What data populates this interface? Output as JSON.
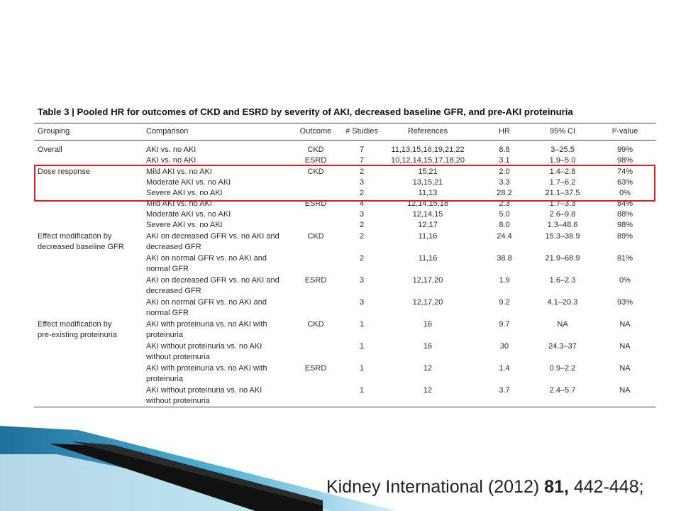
{
  "caption": "Table 3 | Pooled HR for outcomes of CKD and ESRD by severity of AKI, decreased baseline GFR, and pre-AKI proteinuria",
  "headers": [
    "Grouping",
    "Comparison",
    "Outcome",
    "# Studies",
    "References",
    "HR",
    "95% CI",
    "I²-value"
  ],
  "rows": [
    {
      "group": "Overall",
      "comp": "AKI vs. no AKI",
      "out": "CKD",
      "n": "7",
      "ref": "11,13,15,16,19,21,22",
      "hr": "8.8",
      "ci": "3–25.5",
      "i2": "99%"
    },
    {
      "group": "",
      "comp": "AKI vs. no AKI",
      "out": "ESRD",
      "n": "7",
      "ref": "10,12,14,15,17,18,20",
      "hr": "3.1",
      "ci": "1.9–5.0",
      "i2": "98%"
    },
    {
      "group": "Dose response",
      "comp": "Mild AKI vs. no AKI",
      "out": "CKD",
      "n": "2",
      "ref": "15,21",
      "hr": "2.0",
      "ci": "1.4–2.8",
      "i2": "74%"
    },
    {
      "group": "",
      "comp": "Moderate AKI vs. no AKI",
      "out": "",
      "n": "3",
      "ref": "13,15,21",
      "hr": "3.3",
      "ci": "1.7–6.2",
      "i2": "63%"
    },
    {
      "group": "",
      "comp": "Severe AKI vs. no AKI",
      "out": "",
      "n": "2",
      "ref": "11,13",
      "hr": "28.2",
      "ci": "21.1–37.5",
      "i2": "0%"
    },
    {
      "group": "",
      "comp": "Mild AKI vs. no AKI",
      "out": "ESRD",
      "n": "4",
      "ref": "12,14,15,18",
      "hr": "2.3",
      "ci": "1.7–3.3",
      "i2": "84%"
    },
    {
      "group": "",
      "comp": "Moderate AKI vs. no AKI",
      "out": "",
      "n": "3",
      "ref": "12,14,15",
      "hr": "5.0",
      "ci": "2.6–9.8",
      "i2": "88%"
    },
    {
      "group": "",
      "comp": "Severe AKI vs. no AKI",
      "out": "",
      "n": "2",
      "ref": "12,17",
      "hr": "8.0",
      "ci": "1.3–48.6",
      "i2": "98%"
    },
    {
      "group": "Effect modification by",
      "group2": "decreased baseline GFR",
      "comp": "AKI on decreased GFR vs. no AKI and",
      "comp2": "decreased GFR",
      "out": "CKD",
      "n": "2",
      "ref": "11,16",
      "hr": "24.4",
      "ci": "15.3–38.9",
      "i2": "89%"
    },
    {
      "group": "",
      "comp": "AKI on normal GFR vs. no AKI and",
      "comp2": "normal GFR",
      "out": "",
      "n": "2",
      "ref": "11,16",
      "hr": "38.8",
      "ci": "21.9–68.9",
      "i2": "81%"
    },
    {
      "group": "",
      "comp": "AKI on decreased GFR vs. no AKI and",
      "comp2": "decreased GFR",
      "out": "ESRD",
      "n": "3",
      "ref": "12,17,20",
      "hr": "1.9",
      "ci": "1.6–2.3",
      "i2": "0%"
    },
    {
      "group": "",
      "comp": "AKI on normal GFR vs. no AKI and",
      "comp2": "normal GFR",
      "out": "",
      "n": "3",
      "ref": "12,17,20",
      "hr": "9.2",
      "ci": "4.1–20.3",
      "i2": "93%"
    },
    {
      "group": "Effect modification by",
      "group2": "pre-existing proteinuria",
      "comp": "AKI with proteinuria vs. no AKI with",
      "comp2": "proteinuria",
      "out": "CKD",
      "n": "1",
      "ref": "16",
      "hr": "9.7",
      "ci": "NA",
      "i2": "NA"
    },
    {
      "group": "",
      "comp": "AKI without proteinuria vs. no AKI",
      "comp2": "without proteinuria",
      "out": "",
      "n": "1",
      "ref": "16",
      "hr": "30",
      "ci": "24.3–37",
      "i2": "NA"
    },
    {
      "group": "",
      "comp": "AKI with proteinuria vs. no AKI with",
      "comp2": "proteinuria",
      "out": "ESRD",
      "n": "1",
      "ref": "12",
      "hr": "1.4",
      "ci": "0.9–2.2",
      "i2": "NA"
    },
    {
      "group": "",
      "comp": "AKI without proteinuria vs. no AKI",
      "comp2": "without proteinuria",
      "out": "",
      "n": "1",
      "ref": "12",
      "hr": "3.7",
      "ci": "2.4–5.7",
      "i2": "NA"
    }
  ],
  "citation": {
    "journal": "Kidney International (2012) ",
    "volume": "81,",
    "pages": " 442-448;"
  },
  "colors": {
    "highlight": "#e02020",
    "deco_dark": "#111111",
    "deco_blue": "#1e7aa8",
    "deco_light": "#bfe3f1"
  }
}
